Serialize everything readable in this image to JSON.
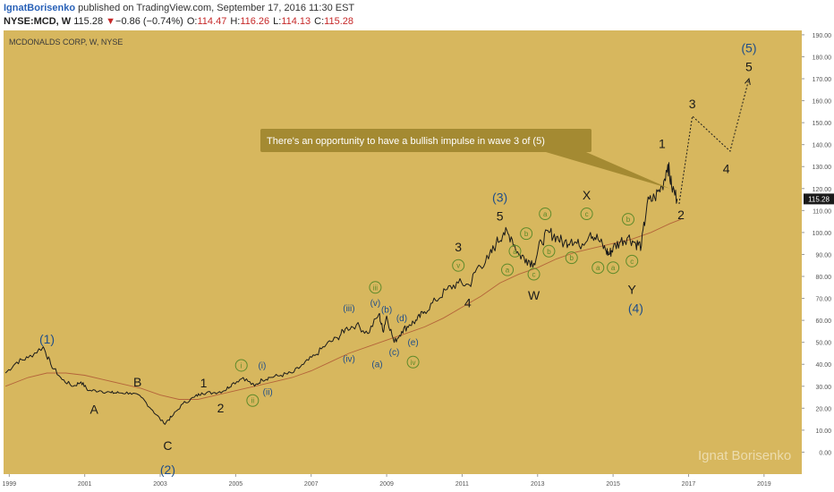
{
  "header": {
    "author": "IgnatBorisenko",
    "published": "published on TradingView.com, September 17, 2016 11:30 EST",
    "symbol": "NYSE:MCD, W",
    "last": "115.28",
    "change_arrow": "▼",
    "change": "−0.86 (−0.74%)",
    "o_label": "O:",
    "o_value": "114.47",
    "h_label": "H:",
    "h_value": "116.26",
    "l_label": "L:",
    "l_value": "114.13",
    "c_label": "C:",
    "c_value": "115.28"
  },
  "chart_data": {
    "type": "line",
    "title": "MCDONALDS CORP, W, NYSE",
    "watermark": "Ignat Borisenko",
    "x_ticks": [
      "1999",
      "2001",
      "2003",
      "2005",
      "2007",
      "2009",
      "2011",
      "2013",
      "2015",
      "2017",
      "2019"
    ],
    "y_ticks": [
      "0.00",
      "10.00",
      "20.00",
      "30.00",
      "40.00",
      "50.00",
      "60.00",
      "70.00",
      "80.00",
      "90.00",
      "100.00",
      "110.00",
      "120.00",
      "130.00",
      "140.00",
      "150.00",
      "160.00",
      "170.00",
      "180.00",
      "190.00"
    ],
    "ylim": [
      -10,
      192
    ],
    "xlim": [
      1998.85,
      2020.0
    ],
    "last_price_label": "115.28",
    "colors": {
      "background": "#d7b75e",
      "price": "#1a1a1a",
      "moving_average": "#b4643a",
      "wave_blue": "#1f4e8a",
      "wave_black": "#1a1a1a",
      "wave_green": "#5e8a2a",
      "callout": "#a48a32"
    },
    "series": [
      {
        "values": [
          [
            1998.9,
            36
          ],
          [
            1999.2,
            41
          ],
          [
            1999.5,
            43
          ],
          [
            1999.9,
            48
          ],
          [
            2000.1,
            40
          ],
          [
            2000.4,
            33
          ],
          [
            2000.7,
            30
          ],
          [
            2000.9,
            32
          ],
          [
            2001.1,
            28
          ],
          [
            2001.4,
            28
          ],
          [
            2001.7,
            27
          ],
          [
            2001.9,
            27
          ],
          [
            2002.2,
            27
          ],
          [
            2002.5,
            25
          ],
          [
            2002.8,
            19
          ],
          [
            2003.1,
            13
          ],
          [
            2003.3,
            16
          ],
          [
            2003.6,
            22
          ],
          [
            2003.9,
            25
          ],
          [
            2004.1,
            27
          ],
          [
            2004.4,
            27
          ],
          [
            2004.7,
            28
          ],
          [
            2004.9,
            31
          ],
          [
            2005.2,
            34
          ],
          [
            2005.5,
            30
          ],
          [
            2005.7,
            33
          ],
          [
            2005.9,
            34
          ],
          [
            2006.2,
            35
          ],
          [
            2006.5,
            36
          ],
          [
            2006.8,
            40
          ],
          [
            2007.1,
            44
          ],
          [
            2007.4,
            49
          ],
          [
            2007.7,
            52
          ],
          [
            2007.9,
            56
          ],
          [
            2008.2,
            58
          ],
          [
            2008.5,
            54
          ],
          [
            2008.8,
            63
          ],
          [
            2008.9,
            55
          ],
          [
            2009.0,
            62
          ],
          [
            2009.2,
            50
          ],
          [
            2009.4,
            55
          ],
          [
            2009.6,
            58
          ],
          [
            2009.8,
            60
          ],
          [
            2010.0,
            64
          ],
          [
            2010.3,
            69
          ],
          [
            2010.6,
            74
          ],
          [
            2010.9,
            77
          ],
          [
            2011.2,
            76
          ],
          [
            2011.4,
            84
          ],
          [
            2011.7,
            88
          ],
          [
            2011.9,
            95
          ],
          [
            2012.1,
            100
          ],
          [
            2012.3,
            98
          ],
          [
            2012.5,
            90
          ],
          [
            2012.7,
            88
          ],
          [
            2012.9,
            86
          ],
          [
            2013.1,
            96
          ],
          [
            2013.3,
            100
          ],
          [
            2013.5,
            98
          ],
          [
            2013.7,
            95
          ],
          [
            2013.9,
            97
          ],
          [
            2014.1,
            94
          ],
          [
            2014.4,
            100
          ],
          [
            2014.6,
            97
          ],
          [
            2014.8,
            92
          ],
          [
            2014.9,
            90
          ],
          [
            2015.0,
            93
          ],
          [
            2015.2,
            96
          ],
          [
            2015.4,
            98
          ],
          [
            2015.6,
            95
          ],
          [
            2015.75,
            94
          ],
          [
            2015.9,
            113
          ],
          [
            2016.1,
            116
          ],
          [
            2016.3,
            121
          ],
          [
            2016.45,
            131
          ],
          [
            2016.55,
            121
          ],
          [
            2016.7,
            115.28
          ]
        ]
      },
      {
        "values": [
          [
            1998.9,
            30
          ],
          [
            1999.5,
            34
          ],
          [
            2000.0,
            36
          ],
          [
            2000.5,
            36
          ],
          [
            2001.0,
            35
          ],
          [
            2001.5,
            33
          ],
          [
            2002.0,
            31
          ],
          [
            2002.5,
            29
          ],
          [
            2003.0,
            26
          ],
          [
            2003.5,
            24
          ],
          [
            2004.0,
            24
          ],
          [
            2004.5,
            26
          ],
          [
            2005.0,
            28
          ],
          [
            2005.5,
            30
          ],
          [
            2006.0,
            32
          ],
          [
            2006.5,
            34
          ],
          [
            2007.0,
            37
          ],
          [
            2007.5,
            41
          ],
          [
            2008.0,
            45
          ],
          [
            2008.5,
            48
          ],
          [
            2009.0,
            51
          ],
          [
            2009.5,
            54
          ],
          [
            2010.0,
            57
          ],
          [
            2010.5,
            61
          ],
          [
            2011.0,
            66
          ],
          [
            2011.5,
            71
          ],
          [
            2012.0,
            77
          ],
          [
            2012.5,
            81
          ],
          [
            2013.0,
            84
          ],
          [
            2013.5,
            88
          ],
          [
            2014.0,
            91
          ],
          [
            2014.5,
            93
          ],
          [
            2015.0,
            95
          ],
          [
            2015.5,
            97
          ],
          [
            2016.0,
            100
          ],
          [
            2016.5,
            104
          ],
          [
            2016.8,
            106
          ]
        ]
      },
      {
        "values": [
          [
            2016.75,
            113
          ],
          [
            2017.1,
            153
          ],
          [
            2018.1,
            137
          ],
          [
            2018.6,
            170
          ]
        ]
      }
    ],
    "wave_labels": [
      {
        "text": "(1)",
        "x": 2000.0,
        "y": 51.5,
        "color": "blue"
      },
      {
        "text": "A",
        "x": 2001.25,
        "y": 19.5,
        "color": "black"
      },
      {
        "text": "B",
        "x": 2002.4,
        "y": 32,
        "color": "black"
      },
      {
        "text": "C",
        "x": 2003.2,
        "y": 3,
        "color": "black"
      },
      {
        "text": "(2)",
        "x": 2003.2,
        "y": -8,
        "color": "blue"
      },
      {
        "text": "1",
        "x": 2004.15,
        "y": 31.5,
        "color": "black"
      },
      {
        "text": "2",
        "x": 2004.6,
        "y": 20,
        "color": "black"
      },
      {
        "text": "i",
        "x": 2005.15,
        "y": 39.5,
        "color": "green_circle"
      },
      {
        "text": "(i)",
        "x": 2005.7,
        "y": 39.5,
        "color": "blue"
      },
      {
        "text": "ii",
        "x": 2005.45,
        "y": 23.5,
        "color": "green_circle"
      },
      {
        "text": "(ii)",
        "x": 2005.85,
        "y": 27.5,
        "color": "blue"
      },
      {
        "text": "(iii)",
        "x": 2008.0,
        "y": 65.5,
        "color": "blue"
      },
      {
        "text": "iii",
        "x": 2008.7,
        "y": 75,
        "color": "green_circle"
      },
      {
        "text": "(v)",
        "x": 2008.7,
        "y": 68,
        "color": "blue"
      },
      {
        "text": "(iv)",
        "x": 2008.0,
        "y": 42.5,
        "color": "blue"
      },
      {
        "text": "(b)",
        "x": 2009.0,
        "y": 65,
        "color": "blue"
      },
      {
        "text": "(d)",
        "x": 2009.4,
        "y": 61,
        "color": "blue"
      },
      {
        "text": "(a)",
        "x": 2008.75,
        "y": 40,
        "color": "blue"
      },
      {
        "text": "(c)",
        "x": 2009.2,
        "y": 45.5,
        "color": "blue"
      },
      {
        "text": "(e)",
        "x": 2009.7,
        "y": 50,
        "color": "blue"
      },
      {
        "text": "iv",
        "x": 2009.7,
        "y": 41,
        "color": "green_circle"
      },
      {
        "text": "3",
        "x": 2010.9,
        "y": 93.5,
        "color": "black"
      },
      {
        "text": "v",
        "x": 2010.9,
        "y": 85,
        "color": "green_circle"
      },
      {
        "text": "4",
        "x": 2011.15,
        "y": 68,
        "color": "black"
      },
      {
        "text": "(3)",
        "x": 2012.0,
        "y": 116,
        "color": "blue"
      },
      {
        "text": "5",
        "x": 2012.0,
        "y": 107.5,
        "color": "black"
      },
      {
        "text": "a",
        "x": 2012.4,
        "y": 91.5,
        "color": "green_circle"
      },
      {
        "text": "b",
        "x": 2012.7,
        "y": 99.5,
        "color": "green_circle"
      },
      {
        "text": "a",
        "x": 2012.2,
        "y": 83,
        "color": "green_circle"
      },
      {
        "text": "c",
        "x": 2012.9,
        "y": 81,
        "color": "green_circle"
      },
      {
        "text": "W",
        "x": 2012.9,
        "y": 71.5,
        "color": "black"
      },
      {
        "text": "a",
        "x": 2013.2,
        "y": 108.5,
        "color": "green_circle"
      },
      {
        "text": "b",
        "x": 2013.3,
        "y": 91.5,
        "color": "green_circle"
      },
      {
        "text": "X",
        "x": 2014.3,
        "y": 117,
        "color": "black"
      },
      {
        "text": "c",
        "x": 2014.3,
        "y": 108.5,
        "color": "green_circle"
      },
      {
        "text": "b",
        "x": 2013.9,
        "y": 88.5,
        "color": "green_circle"
      },
      {
        "text": "a",
        "x": 2014.6,
        "y": 84,
        "color": "green_circle"
      },
      {
        "text": "b",
        "x": 2015.4,
        "y": 106,
        "color": "green_circle"
      },
      {
        "text": "a",
        "x": 2015.0,
        "y": 84,
        "color": "green_circle"
      },
      {
        "text": "c",
        "x": 2015.5,
        "y": 87,
        "color": "green_circle"
      },
      {
        "text": "Y",
        "x": 2015.5,
        "y": 74,
        "color": "black"
      },
      {
        "text": "(4)",
        "x": 2015.6,
        "y": 65.5,
        "color": "blue"
      },
      {
        "text": "1",
        "x": 2016.3,
        "y": 140.5,
        "color": "black"
      },
      {
        "text": "2",
        "x": 2016.8,
        "y": 108,
        "color": "black"
      },
      {
        "text": "3",
        "x": 2017.1,
        "y": 158.5,
        "color": "black"
      },
      {
        "text": "4",
        "x": 2018.0,
        "y": 129,
        "color": "black"
      },
      {
        "text": "(5)",
        "x": 2018.6,
        "y": 184,
        "color": "blue"
      },
      {
        "text": "5",
        "x": 2018.6,
        "y": 175.5,
        "color": "black"
      }
    ],
    "annotation": {
      "text": "There's an opportunity to have a bullish impulse in wave 3 of (5)",
      "pointer_to": [
        2016.5,
        120
      ]
    }
  }
}
